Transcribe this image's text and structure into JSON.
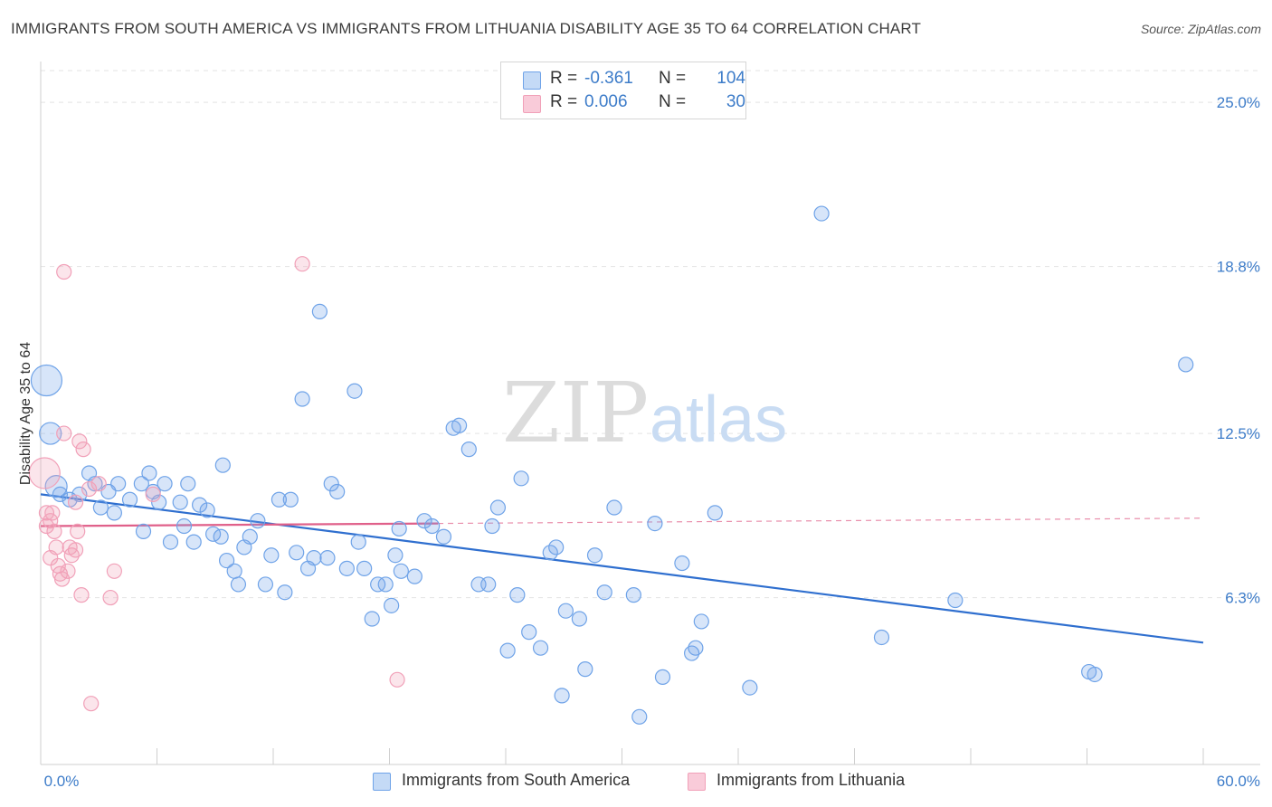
{
  "title": "IMMIGRANTS FROM SOUTH AMERICA VS IMMIGRANTS FROM LITHUANIA DISABILITY AGE 35 TO 64 CORRELATION CHART",
  "source": "Source: ZipAtlas.com",
  "watermark": {
    "zip": "ZIP",
    "atlas": "atlas"
  },
  "legend": {
    "rows": [
      {
        "r_label": "R = ",
        "r_value": "-0.361",
        "n_label": "N = ",
        "n_value": "104"
      },
      {
        "r_label": "R = ",
        "r_value": "0.006",
        "n_label": "N = ",
        "n_value": "30"
      }
    ]
  },
  "chart_data": {
    "type": "scatter",
    "title": "IMMIGRANTS FROM SOUTH AMERICA VS IMMIGRANTS FROM LITHUANIA DISABILITY AGE 35 TO 64 CORRELATION CHART",
    "xlabel": "",
    "ylabel": "Disability Age 35 to 64",
    "xlim": [
      0,
      60
    ],
    "ylim": [
      0,
      26.2
    ],
    "x_tick_labels": [
      "0.0%",
      "60.0%"
    ],
    "y_ticks": [
      6.3,
      12.5,
      18.8,
      25.0
    ],
    "y_tick_labels": [
      "6.3%",
      "12.5%",
      "18.8%",
      "25.0%"
    ],
    "grid": true,
    "legend_position": "top-center",
    "colors": {
      "south_america": "#6fa3e8",
      "lithuania": "#f1a0b8",
      "south_america_line": "#2f6fcf",
      "lithuania_line": "#e0608a",
      "tick_text": "#3d7cc9"
    },
    "series": [
      {
        "name": "Immigrants from South America",
        "r": -0.361,
        "n": 104,
        "trend": {
          "x": [
            0,
            60
          ],
          "y": [
            10.2,
            4.6
          ]
        },
        "points": [
          [
            0.3,
            14.5,
            3
          ],
          [
            0.5,
            12.5,
            2
          ],
          [
            0.8,
            10.5,
            2
          ],
          [
            1.0,
            10.2,
            1
          ],
          [
            1.5,
            10.0,
            1
          ],
          [
            2.0,
            10.2,
            1
          ],
          [
            2.5,
            11.0,
            1
          ],
          [
            2.8,
            10.6,
            1
          ],
          [
            3.1,
            9.7,
            1
          ],
          [
            3.5,
            10.3,
            1
          ],
          [
            3.8,
            9.5,
            1
          ],
          [
            4.0,
            10.6,
            1
          ],
          [
            4.6,
            10.0,
            1
          ],
          [
            5.2,
            10.6,
            1
          ],
          [
            5.3,
            8.8,
            1
          ],
          [
            5.6,
            11.0,
            1
          ],
          [
            5.8,
            10.3,
            1
          ],
          [
            6.1,
            9.9,
            1
          ],
          [
            6.4,
            10.6,
            1
          ],
          [
            6.7,
            8.4,
            1
          ],
          [
            7.2,
            9.9,
            1
          ],
          [
            7.4,
            9.0,
            1
          ],
          [
            7.6,
            10.6,
            1
          ],
          [
            7.9,
            8.4,
            1
          ],
          [
            8.2,
            9.8,
            1
          ],
          [
            8.6,
            9.6,
            1
          ],
          [
            8.9,
            8.7,
            1
          ],
          [
            9.3,
            8.6,
            1
          ],
          [
            9.4,
            11.3,
            1
          ],
          [
            9.6,
            7.7,
            1
          ],
          [
            10.0,
            7.3,
            1
          ],
          [
            10.2,
            6.8,
            1
          ],
          [
            10.5,
            8.2,
            1
          ],
          [
            10.8,
            8.6,
            1
          ],
          [
            11.2,
            9.2,
            1
          ],
          [
            11.6,
            6.8,
            1
          ],
          [
            11.9,
            7.9,
            1
          ],
          [
            12.3,
            10.0,
            1
          ],
          [
            12.6,
            6.5,
            1
          ],
          [
            12.9,
            10.0,
            1
          ],
          [
            13.2,
            8.0,
            1
          ],
          [
            13.5,
            13.8,
            1
          ],
          [
            13.8,
            7.4,
            1
          ],
          [
            14.1,
            7.8,
            1
          ],
          [
            14.4,
            17.1,
            1
          ],
          [
            14.8,
            7.8,
            1
          ],
          [
            15.0,
            10.6,
            1
          ],
          [
            15.3,
            10.3,
            1
          ],
          [
            15.8,
            7.4,
            1
          ],
          [
            16.2,
            14.1,
            1
          ],
          [
            16.4,
            8.4,
            1
          ],
          [
            16.7,
            7.4,
            1
          ],
          [
            17.1,
            5.5,
            1
          ],
          [
            17.4,
            6.8,
            1
          ],
          [
            17.8,
            6.8,
            1
          ],
          [
            18.1,
            6.0,
            1
          ],
          [
            18.3,
            7.9,
            1
          ],
          [
            18.6,
            7.3,
            1
          ],
          [
            18.5,
            8.9,
            1
          ],
          [
            19.3,
            7.1,
            1
          ],
          [
            19.8,
            9.2,
            1
          ],
          [
            20.2,
            9.0,
            1
          ],
          [
            20.8,
            8.6,
            1
          ],
          [
            21.3,
            12.7,
            1
          ],
          [
            21.6,
            12.8,
            1
          ],
          [
            22.1,
            11.9,
            1
          ],
          [
            22.6,
            6.8,
            1
          ],
          [
            23.1,
            6.8,
            1
          ],
          [
            23.3,
            9.0,
            1
          ],
          [
            23.6,
            9.7,
            1
          ],
          [
            24.1,
            4.3,
            1
          ],
          [
            24.6,
            6.4,
            1
          ],
          [
            24.8,
            10.8,
            1
          ],
          [
            25.2,
            5.0,
            1
          ],
          [
            25.8,
            4.4,
            1
          ],
          [
            26.3,
            8.0,
            1
          ],
          [
            26.6,
            8.2,
            1
          ],
          [
            26.9,
            2.6,
            1
          ],
          [
            27.1,
            5.8,
            1
          ],
          [
            27.8,
            5.5,
            1
          ],
          [
            28.1,
            3.6,
            1
          ],
          [
            28.6,
            7.9,
            1
          ],
          [
            29.1,
            6.5,
            1
          ],
          [
            29.6,
            9.7,
            1
          ],
          [
            30.6,
            6.4,
            1
          ],
          [
            30.9,
            1.8,
            1
          ],
          [
            31.7,
            9.1,
            1
          ],
          [
            32.1,
            3.3,
            1
          ],
          [
            33.1,
            7.6,
            1
          ],
          [
            33.6,
            4.2,
            1
          ],
          [
            33.8,
            4.4,
            1
          ],
          [
            34.1,
            5.4,
            1
          ],
          [
            34.8,
            9.5,
            1
          ],
          [
            36.6,
            2.9,
            1
          ],
          [
            40.3,
            20.8,
            1
          ],
          [
            43.4,
            4.8,
            1
          ],
          [
            47.2,
            6.2,
            1
          ],
          [
            54.1,
            3.5,
            1
          ],
          [
            54.4,
            3.4,
            1
          ],
          [
            59.1,
            15.1,
            1
          ]
        ]
      },
      {
        "name": "Immigrants from Lithuania",
        "r": 0.006,
        "n": 30,
        "trend": {
          "x": [
            0,
            20.5
          ],
          "y": [
            9.0,
            9.1
          ]
        },
        "trend_extension": {
          "x": [
            20.5,
            60
          ],
          "y": [
            9.1,
            9.3
          ]
        },
        "points": [
          [
            0.2,
            11.0,
            3
          ],
          [
            0.3,
            9.0,
            1
          ],
          [
            0.3,
            9.5,
            1
          ],
          [
            0.5,
            9.2,
            1
          ],
          [
            0.6,
            9.5,
            1
          ],
          [
            0.5,
            7.8,
            1
          ],
          [
            0.7,
            8.8,
            1
          ],
          [
            0.8,
            8.2,
            1
          ],
          [
            0.9,
            7.5,
            1
          ],
          [
            1.0,
            7.2,
            1
          ],
          [
            1.1,
            7.0,
            1
          ],
          [
            1.2,
            18.6,
            1
          ],
          [
            1.4,
            7.3,
            1
          ],
          [
            1.5,
            8.2,
            1
          ],
          [
            1.6,
            7.9,
            1
          ],
          [
            1.8,
            9.9,
            1
          ],
          [
            1.9,
            8.8,
            1
          ],
          [
            2.0,
            12.2,
            1
          ],
          [
            2.1,
            6.4,
            1
          ],
          [
            2.2,
            11.9,
            1
          ],
          [
            2.5,
            10.4,
            1
          ],
          [
            2.6,
            2.3,
            1
          ],
          [
            3.0,
            10.6,
            1
          ],
          [
            3.6,
            6.3,
            1
          ],
          [
            3.8,
            7.3,
            1
          ],
          [
            1.2,
            12.5,
            1
          ],
          [
            5.8,
            10.2,
            1
          ],
          [
            13.5,
            18.9,
            1
          ],
          [
            18.4,
            3.2,
            1
          ],
          [
            1.8,
            8.1,
            1
          ]
        ]
      }
    ]
  },
  "bottom_legend": [
    {
      "label": "Immigrants from South America"
    },
    {
      "label": "Immigrants from Lithuania"
    }
  ]
}
